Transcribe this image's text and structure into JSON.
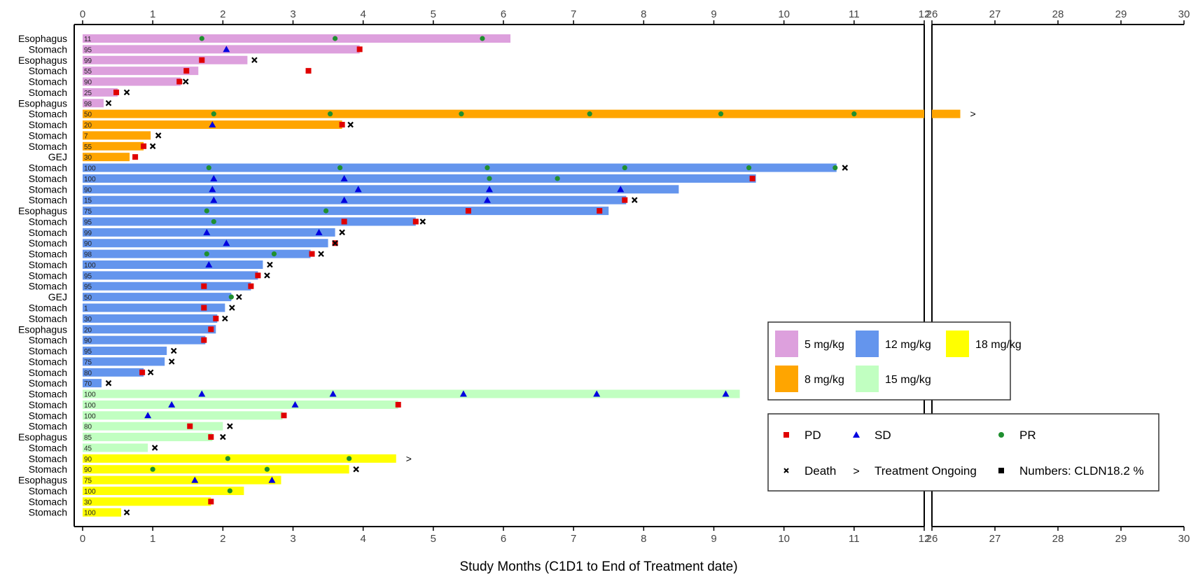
{
  "colors": {
    "dose_5": "#DDA0DD",
    "dose_8": "#FFA500",
    "dose_12": "#6495ED",
    "dose_15": "#C1FFC1",
    "dose_18": "#FFFF00",
    "pd": "#E00000",
    "sd": "#0000E0",
    "pr": "#1F8F2F",
    "death": "#000000",
    "axis": "#000000",
    "tick_text": "#444444"
  },
  "chart_data": {
    "type": "swimmer",
    "xlabel": "Study Months (C1D1 to End of Treatment date)",
    "x_segments": [
      {
        "range": [
          0,
          12
        ],
        "ticks": [
          0,
          1,
          2,
          3,
          4,
          5,
          6,
          7,
          8,
          9,
          10,
          11,
          12
        ]
      },
      {
        "range": [
          26,
          30
        ],
        "ticks": [
          26,
          27,
          28,
          29,
          30
        ]
      }
    ],
    "dose_legend": [
      {
        "dose": "5",
        "label": "5 mg/kg"
      },
      {
        "dose": "12",
        "label": "12 mg/kg"
      },
      {
        "dose": "18",
        "label": "18 mg/kg"
      },
      {
        "dose": "8",
        "label": "8 mg/kg"
      },
      {
        "dose": "15",
        "label": "15 mg/kg"
      }
    ],
    "marker_legend": [
      {
        "type": "pd",
        "symbol": "■",
        "label": "PD"
      },
      {
        "type": "sd",
        "symbol": "▲",
        "label": "SD"
      },
      {
        "type": "pr",
        "symbol": "●",
        "label": "PR"
      },
      {
        "type": "death",
        "symbol": "×",
        "label": "Death"
      },
      {
        "type": "ongoing",
        "symbol": ">",
        "label": "Treatment Ongoing"
      },
      {
        "type": "numbers",
        "symbol": "■",
        "label": "Numbers: CLDN18.2 %"
      }
    ],
    "patients": [
      {
        "site": "Esophagus",
        "cldn": "11",
        "dose": "5",
        "end": 6.1,
        "pr": [
          1.7,
          3.6,
          5.7
        ],
        "sd": [],
        "pd": [],
        "death": null,
        "ongoing": false
      },
      {
        "site": "Stomach",
        "cldn": "95",
        "dose": "5",
        "end": 3.95,
        "pr": [],
        "sd": [
          2.05
        ],
        "pd": [
          3.95
        ],
        "death": null,
        "ongoing": false
      },
      {
        "site": "Esophagus",
        "cldn": "99",
        "dose": "5",
        "end": 2.35,
        "pr": [],
        "sd": [],
        "pd": [
          1.7
        ],
        "death": 2.45,
        "ongoing": false
      },
      {
        "site": "Stomach",
        "cldn": "55",
        "dose": "5",
        "end": 1.65,
        "pr": [],
        "sd": [],
        "pd": [
          1.48,
          3.22
        ],
        "death": null,
        "ongoing": false
      },
      {
        "site": "Stomach",
        "cldn": "90",
        "dose": "5",
        "end": 1.4,
        "pr": [],
        "sd": [],
        "pd": [
          1.38
        ],
        "death": 1.47,
        "ongoing": false
      },
      {
        "site": "Stomach",
        "cldn": "25",
        "dose": "5",
        "end": 0.5,
        "pr": [],
        "sd": [],
        "pd": [
          0.48
        ],
        "death": 0.63,
        "ongoing": false
      },
      {
        "site": "Esophagus",
        "cldn": "98",
        "dose": "5",
        "end": 0.3,
        "pr": [],
        "sd": [],
        "pd": [],
        "death": 0.37,
        "ongoing": false
      },
      {
        "site": "Stomach",
        "cldn": "50",
        "dose": "8",
        "end": 26.45,
        "pr": [
          1.87,
          3.53,
          5.4,
          7.23,
          9.1,
          11.0
        ],
        "sd": [],
        "pd": [],
        "death": null,
        "ongoing": true
      },
      {
        "site": "Stomach",
        "cldn": "20",
        "dose": "8",
        "end": 3.7,
        "pr": [],
        "sd": [
          1.85
        ],
        "pd": [
          3.7
        ],
        "death": 3.82,
        "ongoing": false
      },
      {
        "site": "Stomach",
        "cldn": "7",
        "dose": "8",
        "end": 0.97,
        "pr": [],
        "sd": [],
        "pd": [],
        "death": 1.08,
        "ongoing": false
      },
      {
        "site": "Stomach",
        "cldn": "55",
        "dose": "8",
        "end": 0.87,
        "pr": [],
        "sd": [],
        "pd": [
          0.87
        ],
        "death": 1.0,
        "ongoing": false
      },
      {
        "site": "GEJ",
        "cldn": "30",
        "dose": "8",
        "end": 0.67,
        "pr": [],
        "sd": [],
        "pd": [
          0.75
        ],
        "death": null,
        "ongoing": false
      },
      {
        "site": "Stomach",
        "cldn": "100",
        "dose": "12",
        "end": 10.75,
        "pr": [
          1.8,
          3.67,
          5.77,
          7.73,
          9.5,
          10.73
        ],
        "sd": [],
        "pd": [],
        "death": 10.87,
        "ongoing": false
      },
      {
        "site": "Stomach",
        "cldn": "100",
        "dose": "12",
        "end": 9.6,
        "pr": [
          5.8,
          6.77
        ],
        "sd": [
          1.87,
          3.73
        ],
        "pd": [
          9.55
        ],
        "death": null,
        "ongoing": false
      },
      {
        "site": "Stomach",
        "cldn": "90",
        "dose": "12",
        "end": 8.5,
        "pr": [],
        "sd": [
          1.85,
          3.93,
          5.8,
          7.67
        ],
        "pd": [],
        "death": null,
        "ongoing": false
      },
      {
        "site": "Stomach",
        "cldn": "15",
        "dose": "12",
        "end": 7.75,
        "pr": [],
        "sd": [
          1.87,
          3.73,
          5.77
        ],
        "pd": [
          7.73
        ],
        "death": 7.87,
        "ongoing": false
      },
      {
        "site": "Esophagus",
        "cldn": "75",
        "dose": "12",
        "end": 7.5,
        "pr": [
          1.77,
          3.47
        ],
        "sd": [],
        "pd": [
          5.5,
          7.37
        ],
        "death": null,
        "ongoing": false
      },
      {
        "site": "Stomach",
        "cldn": "95",
        "dose": "12",
        "end": 4.75,
        "pr": [
          1.87
        ],
        "sd": [],
        "pd": [
          3.73,
          4.75
        ],
        "death": 4.85,
        "ongoing": false
      },
      {
        "site": "Stomach",
        "cldn": "99",
        "dose": "12",
        "end": 3.6,
        "pr": [],
        "sd": [
          1.77,
          3.37
        ],
        "pd": [],
        "death": 3.7,
        "ongoing": false
      },
      {
        "site": "Stomach",
        "cldn": "90",
        "dose": "12",
        "end": 3.5,
        "pr": [],
        "sd": [
          2.05
        ],
        "pd": [
          3.6
        ],
        "death": 3.6,
        "ongoing": false
      },
      {
        "site": "Stomach",
        "cldn": "98",
        "dose": "12",
        "end": 3.25,
        "pr": [
          1.77,
          2.73
        ],
        "sd": [],
        "pd": [
          3.27
        ],
        "death": 3.4,
        "ongoing": false
      },
      {
        "site": "Stomach",
        "cldn": "100",
        "dose": "12",
        "end": 2.57,
        "pr": [],
        "sd": [
          1.8
        ],
        "pd": [],
        "death": 2.67,
        "ongoing": false
      },
      {
        "site": "Stomach",
        "cldn": "95",
        "dose": "12",
        "end": 2.5,
        "pr": [],
        "sd": [],
        "pd": [
          2.5
        ],
        "death": 2.63,
        "ongoing": false
      },
      {
        "site": "Stomach",
        "cldn": "95",
        "dose": "12",
        "end": 2.4,
        "pr": [],
        "sd": [],
        "pd": [
          1.73,
          2.4
        ],
        "death": null,
        "ongoing": false
      },
      {
        "site": "GEJ",
        "cldn": "50",
        "dose": "12",
        "end": 2.12,
        "pr": [
          2.12
        ],
        "sd": [],
        "pd": [],
        "death": 2.23,
        "ongoing": false
      },
      {
        "site": "Stomach",
        "cldn": "1",
        "dose": "12",
        "end": 2.03,
        "pr": [],
        "sd": [],
        "pd": [
          1.73
        ],
        "death": 2.13,
        "ongoing": false
      },
      {
        "site": "Stomach",
        "cldn": "30",
        "dose": "12",
        "end": 1.92,
        "pr": [],
        "sd": [],
        "pd": [
          1.9
        ],
        "death": 2.03,
        "ongoing": false
      },
      {
        "site": "Esophagus",
        "cldn": "20",
        "dose": "12",
        "end": 1.9,
        "pr": [],
        "sd": [],
        "pd": [
          1.83
        ],
        "death": null,
        "ongoing": false
      },
      {
        "site": "Stomach",
        "cldn": "90",
        "dose": "12",
        "end": 1.75,
        "pr": [],
        "sd": [],
        "pd": [
          1.73
        ],
        "death": null,
        "ongoing": false
      },
      {
        "site": "Stomach",
        "cldn": "95",
        "dose": "12",
        "end": 1.2,
        "pr": [],
        "sd": [],
        "pd": [],
        "death": 1.3,
        "ongoing": false
      },
      {
        "site": "Stomach",
        "cldn": "75",
        "dose": "12",
        "end": 1.17,
        "pr": [],
        "sd": [],
        "pd": [],
        "death": 1.27,
        "ongoing": false
      },
      {
        "site": "Stomach",
        "cldn": "80",
        "dose": "12",
        "end": 0.87,
        "pr": [],
        "sd": [],
        "pd": [
          0.85
        ],
        "death": 0.97,
        "ongoing": false
      },
      {
        "site": "Stomach",
        "cldn": "70",
        "dose": "12",
        "end": 0.27,
        "pr": [],
        "sd": [],
        "pd": [],
        "death": 0.37,
        "ongoing": false
      },
      {
        "site": "Stomach",
        "cldn": "100",
        "dose": "15",
        "end": 9.37,
        "pr": [],
        "sd": [
          1.7,
          3.57,
          5.43,
          7.33,
          9.17
        ],
        "pd": [],
        "death": null,
        "ongoing": false
      },
      {
        "site": "Stomach",
        "cldn": "100",
        "dose": "15",
        "end": 4.5,
        "pr": [],
        "sd": [
          1.27,
          3.03
        ],
        "pd": [
          4.5
        ],
        "death": null,
        "ongoing": false
      },
      {
        "site": "Stomach",
        "cldn": "100",
        "dose": "15",
        "end": 2.85,
        "pr": [],
        "sd": [
          0.93
        ],
        "pd": [
          2.87
        ],
        "death": null,
        "ongoing": false
      },
      {
        "site": "Stomach",
        "cldn": "80",
        "dose": "15",
        "end": 2.0,
        "pr": [],
        "sd": [],
        "pd": [
          1.53
        ],
        "death": 2.1,
        "ongoing": false
      },
      {
        "site": "Esophagus",
        "cldn": "85",
        "dose": "15",
        "end": 1.85,
        "pr": [],
        "sd": [],
        "pd": [
          1.83
        ],
        "death": 2.0,
        "ongoing": false
      },
      {
        "site": "Stomach",
        "cldn": "45",
        "dose": "15",
        "end": 0.93,
        "pr": [],
        "sd": [],
        "pd": [],
        "death": 1.03,
        "ongoing": false
      },
      {
        "site": "Stomach",
        "cldn": "90",
        "dose": "18",
        "end": 4.47,
        "pr": [
          2.07,
          3.8
        ],
        "sd": [],
        "pd": [],
        "death": null,
        "ongoing": true
      },
      {
        "site": "Stomach",
        "cldn": "90",
        "dose": "18",
        "end": 3.8,
        "pr": [
          1.0,
          2.63
        ],
        "sd": [],
        "pd": [],
        "death": 3.9,
        "ongoing": false
      },
      {
        "site": "Esophagus",
        "cldn": "75",
        "dose": "18",
        "end": 2.83,
        "pr": [],
        "sd": [
          1.6,
          2.7
        ],
        "pd": [],
        "death": null,
        "ongoing": false
      },
      {
        "site": "Stomach",
        "cldn": "100",
        "dose": "18",
        "end": 2.3,
        "pr": [
          2.1
        ],
        "sd": [],
        "pd": [],
        "death": null,
        "ongoing": false
      },
      {
        "site": "Stomach",
        "cldn": "30",
        "dose": "18",
        "end": 1.83,
        "pr": [],
        "sd": [],
        "pd": [
          1.83
        ],
        "death": null,
        "ongoing": false
      },
      {
        "site": "Stomach",
        "cldn": "100",
        "dose": "18",
        "end": 0.55,
        "pr": [],
        "sd": [],
        "pd": [],
        "death": 0.63,
        "ongoing": false
      }
    ]
  }
}
